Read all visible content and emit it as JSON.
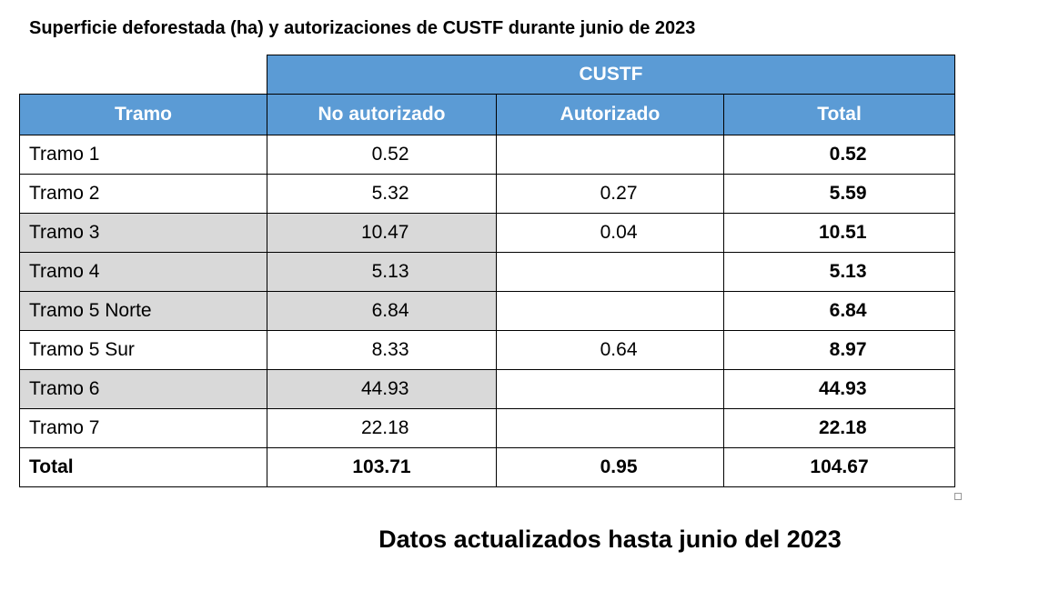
{
  "title": "Superficie deforestada (ha) y autorizaciones de CUSTF durante junio de 2023",
  "table": {
    "group_header": "CUSTF",
    "headers": [
      "Tramo",
      "No autorizado",
      "Autorizado",
      "Total"
    ],
    "rows": [
      {
        "tramo": "Tramo 1",
        "no_autorizado": "0.52",
        "autorizado": "",
        "total": "0.52",
        "shaded": false
      },
      {
        "tramo": "Tramo 2",
        "no_autorizado": "5.32",
        "autorizado": "0.27",
        "total": "5.59",
        "shaded": false
      },
      {
        "tramo": "Tramo 3",
        "no_autorizado": "10.47",
        "autorizado": "0.04",
        "total": "10.51",
        "shaded": true
      },
      {
        "tramo": "Tramo 4",
        "no_autorizado": "5.13",
        "autorizado": "",
        "total": "5.13",
        "shaded": true
      },
      {
        "tramo": "Tramo 5 Norte",
        "no_autorizado": "6.84",
        "autorizado": "",
        "total": "6.84",
        "shaded": true
      },
      {
        "tramo": "Tramo 5 Sur",
        "no_autorizado": "8.33",
        "autorizado": "0.64",
        "total": "8.97",
        "shaded": false
      },
      {
        "tramo": "Tramo 6",
        "no_autorizado": "44.93",
        "autorizado": "",
        "total": "44.93",
        "shaded": true
      },
      {
        "tramo": "Tramo 7",
        "no_autorizado": "22.18",
        "autorizado": "",
        "total": "22.18",
        "shaded": false
      }
    ],
    "total_row": {
      "tramo": "Total",
      "no_autorizado": "103.71",
      "autorizado": "0.95",
      "total": "104.67"
    }
  },
  "footnote": "Datos actualizados hasta junio del 2023",
  "colors": {
    "header_bg": "#5b9bd5",
    "header_text": "#ffffff",
    "shade_bg": "#d9d9d9"
  }
}
